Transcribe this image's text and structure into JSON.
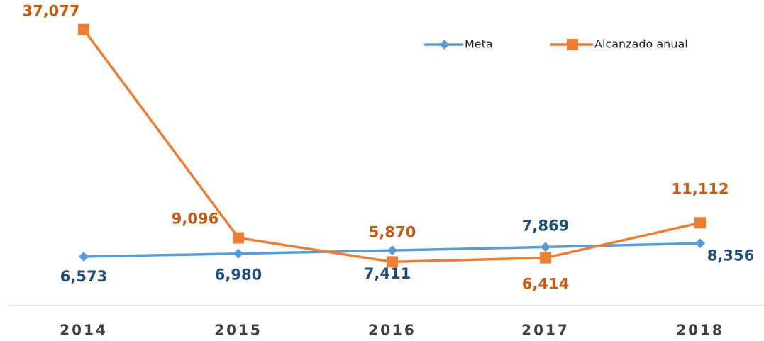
{
  "chart_data": {
    "type": "line",
    "categories": [
      "2014",
      "2015",
      "2016",
      "2017",
      "2018"
    ],
    "ylim": [
      0,
      40000
    ],
    "series": [
      {
        "name": "Meta",
        "color": "#5b9bd5",
        "label_color": "#1f4e79",
        "values": [
          6573,
          6980,
          7411,
          7869,
          8356
        ],
        "value_labels": [
          "6,573",
          "6,980",
          "7,411",
          "7,869",
          "8,356"
        ]
      },
      {
        "name": "Alcanzado anual",
        "color": "#ed7d31",
        "label_color": "#c55a11",
        "values": [
          37077,
          9096,
          5870,
          6414,
          11112
        ],
        "value_labels": [
          "37,077",
          "9,096",
          "5,870",
          "6,414",
          "11,112"
        ]
      }
    ]
  }
}
